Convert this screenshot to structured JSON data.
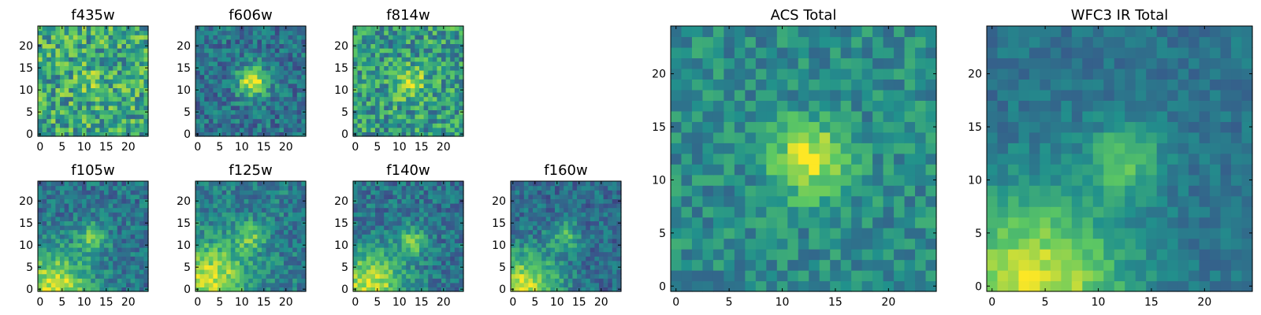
{
  "figure": {
    "colormap": "viridis",
    "colormap_stops": [
      "#440154",
      "#3b528b",
      "#21918c",
      "#5ec962",
      "#fde725"
    ]
  },
  "chart_data": [
    {
      "type": "heatmap",
      "title": "f435w",
      "grid_size": 25,
      "xlim": [
        0,
        24
      ],
      "ylim": [
        0,
        24
      ],
      "xticks": [
        0,
        5,
        10,
        15,
        20
      ],
      "yticks": [
        0,
        5,
        10,
        15,
        20
      ],
      "bright_spot": {
        "x": 12,
        "y": 12,
        "strength": 0.12
      },
      "glow": null,
      "noise": 0.55,
      "baseline": 0.6,
      "seed": 11
    },
    {
      "type": "heatmap",
      "title": "f606w",
      "grid_size": 25,
      "xlim": [
        0,
        24
      ],
      "ylim": [
        0,
        24
      ],
      "xticks": [
        0,
        5,
        10,
        15,
        20
      ],
      "yticks": [
        0,
        5,
        10,
        15,
        20
      ],
      "bright_spot": {
        "x": 12.5,
        "y": 12,
        "strength": 0.6
      },
      "glow": null,
      "noise": 0.35,
      "baseline": 0.38,
      "seed": 23
    },
    {
      "type": "heatmap",
      "title": "f814w",
      "grid_size": 25,
      "xlim": [
        0,
        24
      ],
      "ylim": [
        0,
        24
      ],
      "xticks": [
        0,
        5,
        10,
        15,
        20
      ],
      "yticks": [
        0,
        5,
        10,
        15,
        20
      ],
      "bright_spot": {
        "x": 12.5,
        "y": 11.5,
        "strength": 0.35
      },
      "glow": null,
      "noise": 0.5,
      "baseline": 0.55,
      "seed": 37
    },
    {
      "type": "heatmap",
      "title": "f105w",
      "grid_size": 25,
      "xlim": [
        0,
        24
      ],
      "ylim": [
        0,
        24
      ],
      "xticks": [
        0,
        5,
        10,
        15,
        20
      ],
      "yticks": [
        0,
        5,
        10,
        15,
        20
      ],
      "bright_spot": {
        "x": 12,
        "y": 12,
        "strength": 0.35
      },
      "glow": {
        "x": 3,
        "y": 0,
        "strength": 0.55
      },
      "noise": 0.32,
      "baseline": 0.38,
      "seed": 41
    },
    {
      "type": "heatmap",
      "title": "f125w",
      "grid_size": 25,
      "xlim": [
        0,
        24
      ],
      "ylim": [
        0,
        24
      ],
      "xticks": [
        0,
        5,
        10,
        15,
        20
      ],
      "yticks": [
        0,
        5,
        10,
        15,
        20
      ],
      "bright_spot": {
        "x": 12,
        "y": 12,
        "strength": 0.3
      },
      "glow": {
        "x": 3,
        "y": 2,
        "strength": 0.5
      },
      "noise": 0.32,
      "baseline": 0.42,
      "seed": 53
    },
    {
      "type": "heatmap",
      "title": "f140w",
      "grid_size": 25,
      "xlim": [
        0,
        24
      ],
      "ylim": [
        0,
        24
      ],
      "xticks": [
        0,
        5,
        10,
        15,
        20
      ],
      "yticks": [
        0,
        5,
        10,
        15,
        20
      ],
      "bright_spot": {
        "x": 13,
        "y": 11,
        "strength": 0.35
      },
      "glow": {
        "x": 3,
        "y": 0,
        "strength": 0.55
      },
      "noise": 0.32,
      "baseline": 0.38,
      "seed": 67
    },
    {
      "type": "heatmap",
      "title": "f160w",
      "grid_size": 25,
      "xlim": [
        0,
        24
      ],
      "ylim": [
        0,
        24
      ],
      "xticks": [
        0,
        5,
        10,
        15,
        20
      ],
      "yticks": [
        0,
        5,
        10,
        15,
        20
      ],
      "bright_spot": {
        "x": 12,
        "y": 12,
        "strength": 0.3
      },
      "glow": {
        "x": 2,
        "y": 0,
        "strength": 0.6
      },
      "noise": 0.3,
      "baseline": 0.35,
      "seed": 79
    },
    {
      "type": "heatmap",
      "title": "ACS Total",
      "grid_size": 25,
      "xlim": [
        0,
        24
      ],
      "ylim": [
        0,
        24
      ],
      "xticks": [
        0,
        5,
        10,
        15,
        20
      ],
      "yticks": [
        0,
        5,
        10,
        15,
        20
      ],
      "bright_spot": {
        "x": 12.5,
        "y": 12,
        "strength": 0.5
      },
      "glow": null,
      "noise": 0.3,
      "baseline": 0.48,
      "seed": 97
    },
    {
      "type": "heatmap",
      "title": "WFC3 IR Total",
      "grid_size": 25,
      "xlim": [
        0,
        24
      ],
      "ylim": [
        0,
        24
      ],
      "xticks": [
        0,
        5,
        10,
        15,
        20
      ],
      "yticks": [
        0,
        5,
        10,
        15,
        20
      ],
      "bright_spot": {
        "x": 12.5,
        "y": 12,
        "strength": 0.32
      },
      "glow": {
        "x": 4,
        "y": 0,
        "strength": 0.55
      },
      "noise": 0.18,
      "baseline": 0.38,
      "seed": 113
    }
  ]
}
